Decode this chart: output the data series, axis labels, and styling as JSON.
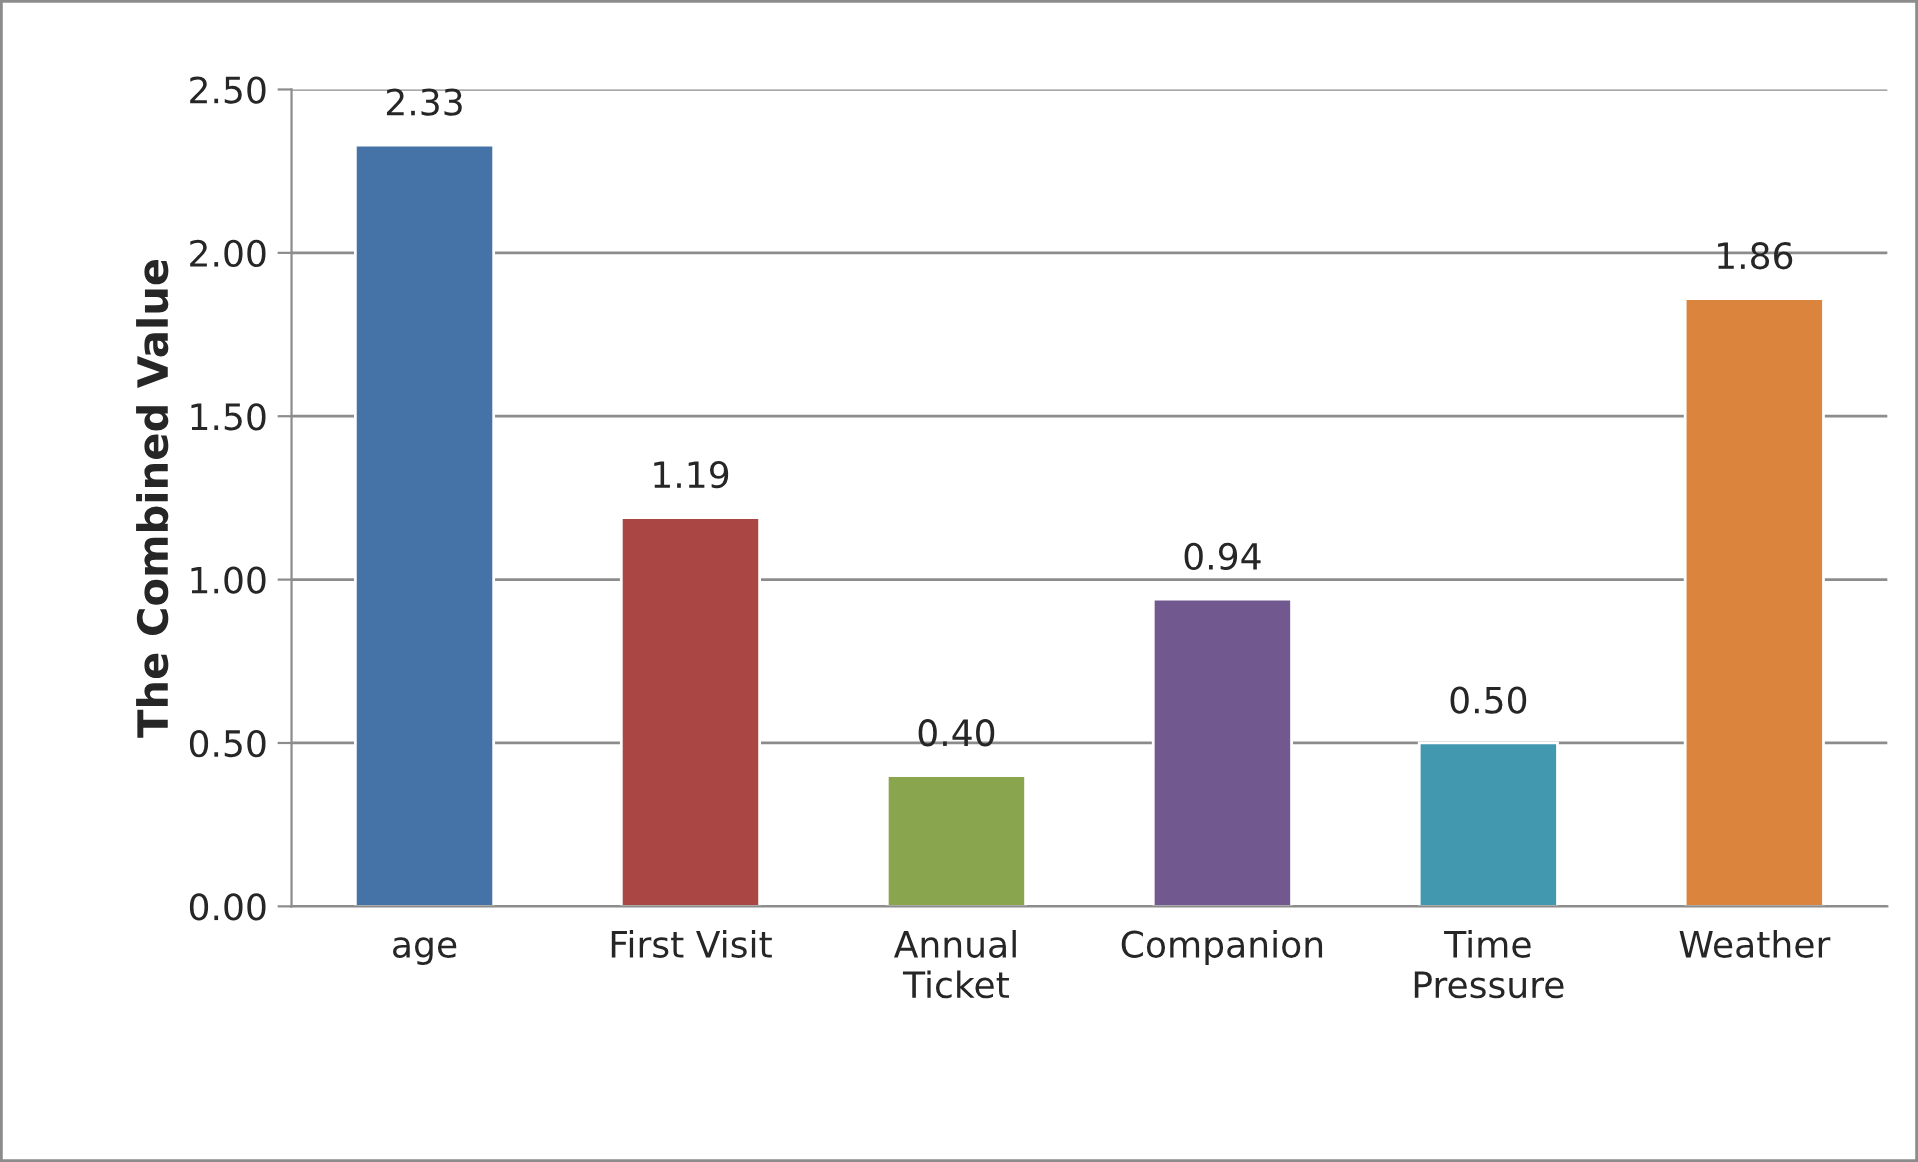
{
  "chart_data": {
    "type": "bar",
    "ylabel": "The Combined Value",
    "categories": [
      "age",
      "First Visit",
      "Annual\nTicket",
      "Companion",
      "Time\nPressure",
      "Weather"
    ],
    "values": [
      2.33,
      1.19,
      0.4,
      0.94,
      0.5,
      1.86
    ],
    "value_labels": [
      "2.33",
      "1.19",
      "0.40",
      "0.94",
      "0.50",
      "1.86"
    ],
    "colors": [
      "#4572a7",
      "#aa4643",
      "#89a54e",
      "#71588f",
      "#4198af",
      "#db843d"
    ],
    "ylim": [
      0,
      2.5
    ],
    "yticks": [
      {
        "value": 0,
        "label": "0.00"
      },
      {
        "value": 0.5,
        "label": "0.50"
      },
      {
        "value": 1.0,
        "label": "1.00"
      },
      {
        "value": 1.5,
        "label": "1.50"
      },
      {
        "value": 2.0,
        "label": "2.00"
      },
      {
        "value": 2.5,
        "label": "2.50"
      }
    ],
    "grid": "y"
  }
}
